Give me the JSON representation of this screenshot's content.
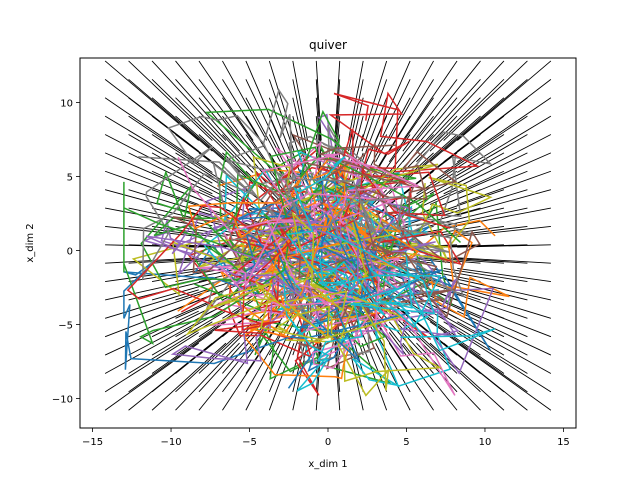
{
  "chart_data": {
    "type": "quiver",
    "title": "quiver",
    "xlabel": "x_dim 1",
    "ylabel": "x_dim 2",
    "xlim": [
      -15.8,
      15.8
    ],
    "ylim": [
      -12.0,
      13.0
    ],
    "xticks": [
      -15,
      -10,
      -5,
      0,
      5,
      10,
      15
    ],
    "yticks": [
      -10,
      -5,
      0,
      5,
      10
    ],
    "xtick_labels": [
      "−15",
      "−10",
      "−5",
      "0",
      "5",
      "10",
      "15"
    ],
    "ytick_labels": [
      "−10",
      "−5",
      "0",
      "5",
      "10"
    ],
    "grid": false,
    "quiver": {
      "x_range": [
        -14.2,
        14.2
      ],
      "y_range": [
        -10.8,
        12.8
      ],
      "nx": 20,
      "ny": 20,
      "field": "points toward origin",
      "color": "#000000"
    },
    "trajectories": {
      "count": 60,
      "colors": [
        "#1f77b4",
        "#ff7f0e",
        "#2ca02c",
        "#d62728",
        "#9467bd",
        "#8c564b",
        "#e377c2",
        "#7f7f7f",
        "#bcbd22",
        "#17becf"
      ],
      "behavior": "random walks concentrated around origin"
    }
  }
}
